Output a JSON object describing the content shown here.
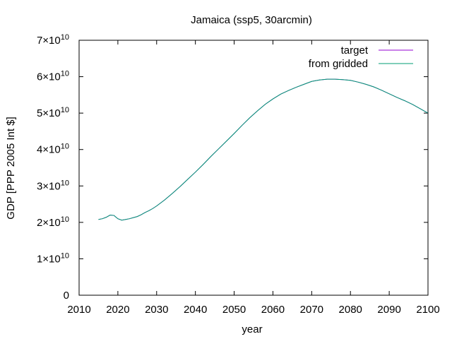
{
  "chart_data": {
    "type": "line",
    "title": "Jamaica (ssp5, 30arcmin)",
    "xlabel": "year",
    "ylabel": "GDP [PPP 2005 Int $]",
    "xlim": [
      2010,
      2100
    ],
    "ylim": [
      0,
      70000000000
    ],
    "x_ticks": [
      2010,
      2020,
      2030,
      2040,
      2050,
      2060,
      2070,
      2080,
      2090,
      2100
    ],
    "x_tick_labels": [
      "2010",
      "2020",
      "2030",
      "2040",
      "2050",
      "2060",
      "2070",
      "2080",
      "2090",
      "2100"
    ],
    "y_ticks": [
      {
        "value": 0,
        "mant": "0",
        "exp": ""
      },
      {
        "value": 10000000000,
        "mant": "1×10",
        "exp": "10"
      },
      {
        "value": 20000000000,
        "mant": "2×10",
        "exp": "10"
      },
      {
        "value": 30000000000,
        "mant": "3×10",
        "exp": "10"
      },
      {
        "value": 40000000000,
        "mant": "4×10",
        "exp": "10"
      },
      {
        "value": 50000000000,
        "mant": "5×10",
        "exp": "10"
      },
      {
        "value": 60000000000,
        "mant": "6×10",
        "exp": "10"
      },
      {
        "value": 70000000000,
        "mant": "7×10",
        "exp": "10"
      }
    ],
    "grid": false,
    "legend_position": "top-right",
    "series": [
      {
        "name": "target",
        "color": "#9400d3",
        "x": [
          2015,
          2016,
          2017,
          2018,
          2019,
          2020,
          2021,
          2022,
          2023,
          2024,
          2025,
          2026,
          2027,
          2028,
          2029,
          2030,
          2032,
          2034,
          2036,
          2038,
          2040,
          2042,
          2044,
          2046,
          2048,
          2050,
          2052,
          2054,
          2056,
          2058,
          2060,
          2062,
          2064,
          2066,
          2068,
          2070,
          2072,
          2074,
          2076,
          2078,
          2080,
          2082,
          2084,
          2086,
          2088,
          2090,
          2092,
          2094,
          2096,
          2098,
          2100
        ],
        "y": [
          20.8,
          21.0,
          21.4,
          22.0,
          21.9,
          21.0,
          20.6,
          20.8,
          21.0,
          21.3,
          21.6,
          22.1,
          22.7,
          23.2,
          23.8,
          24.5,
          26.1,
          27.9,
          29.8,
          31.8,
          33.8,
          35.9,
          38.1,
          40.2,
          42.3,
          44.4,
          46.6,
          48.7,
          50.6,
          52.4,
          53.9,
          55.2,
          56.2,
          57.1,
          57.9,
          58.7,
          59.1,
          59.3,
          59.3,
          59.2,
          59.0,
          58.5,
          57.9,
          57.2,
          56.3,
          55.3,
          54.3,
          53.4,
          52.4,
          51.2,
          50.0
        ]
      },
      {
        "name": "from gridded",
        "color": "#009e73",
        "x": [
          2015,
          2016,
          2017,
          2018,
          2019,
          2020,
          2021,
          2022,
          2023,
          2024,
          2025,
          2026,
          2027,
          2028,
          2029,
          2030,
          2032,
          2034,
          2036,
          2038,
          2040,
          2042,
          2044,
          2046,
          2048,
          2050,
          2052,
          2054,
          2056,
          2058,
          2060,
          2062,
          2064,
          2066,
          2068,
          2070,
          2072,
          2074,
          2076,
          2078,
          2080,
          2082,
          2084,
          2086,
          2088,
          2090,
          2092,
          2094,
          2096,
          2098,
          2100
        ],
        "y": [
          20.8,
          21.0,
          21.4,
          22.0,
          21.9,
          21.0,
          20.6,
          20.8,
          21.0,
          21.3,
          21.6,
          22.1,
          22.7,
          23.2,
          23.8,
          24.5,
          26.1,
          27.9,
          29.8,
          31.8,
          33.8,
          35.9,
          38.1,
          40.2,
          42.3,
          44.4,
          46.6,
          48.7,
          50.6,
          52.4,
          53.9,
          55.2,
          56.2,
          57.1,
          57.9,
          58.7,
          59.1,
          59.3,
          59.3,
          59.2,
          59.0,
          58.5,
          57.9,
          57.2,
          56.3,
          55.3,
          54.3,
          53.4,
          52.4,
          51.2,
          50.0
        ],
        "y_unit_multiplier": 1000000000
      }
    ]
  }
}
